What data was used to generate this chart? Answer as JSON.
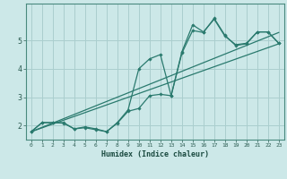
{
  "title": "",
  "xlabel": "Humidex (Indice chaleur)",
  "bg_color": "#cce8e8",
  "grid_color": "#aacece",
  "line_color": "#2a7a6e",
  "line_width": 0.9,
  "marker": "D",
  "marker_size": 1.8,
  "xlim": [
    -0.5,
    23.5
  ],
  "ylim": [
    1.5,
    6.3
  ],
  "xticks": [
    0,
    1,
    2,
    3,
    4,
    5,
    6,
    7,
    8,
    9,
    10,
    11,
    12,
    13,
    14,
    15,
    16,
    17,
    18,
    19,
    20,
    21,
    22,
    23
  ],
  "yticks": [
    2,
    3,
    4,
    5
  ],
  "series": [
    {
      "x": [
        0,
        1,
        2,
        3,
        4,
        5,
        6,
        7,
        8,
        9,
        10,
        11,
        12,
        13,
        14,
        15,
        16,
        17,
        18,
        19,
        20,
        21,
        22,
        23
      ],
      "y": [
        1.78,
        2.1,
        2.1,
        2.1,
        1.88,
        1.95,
        1.88,
        1.78,
        2.1,
        2.55,
        4.0,
        4.35,
        4.5,
        3.05,
        4.6,
        5.55,
        5.3,
        5.75,
        5.15,
        4.85,
        4.9,
        5.3,
        5.3,
        4.9
      ]
    },
    {
      "x": [
        0,
        1,
        2,
        3,
        4,
        5,
        6,
        7,
        8,
        9,
        10,
        11,
        12,
        13,
        14,
        15,
        16,
        17,
        18,
        19,
        20,
        21,
        22,
        23
      ],
      "y": [
        1.78,
        2.1,
        2.1,
        2.08,
        1.88,
        1.92,
        1.85,
        1.78,
        2.08,
        2.5,
        2.6,
        3.05,
        3.1,
        3.05,
        4.55,
        5.35,
        5.28,
        5.78,
        5.18,
        4.82,
        4.88,
        5.3,
        5.3,
        4.9
      ]
    },
    {
      "x": [
        0,
        23
      ],
      "y": [
        1.78,
        4.88
      ]
    },
    {
      "x": [
        0,
        23
      ],
      "y": [
        1.78,
        5.28
      ]
    }
  ]
}
